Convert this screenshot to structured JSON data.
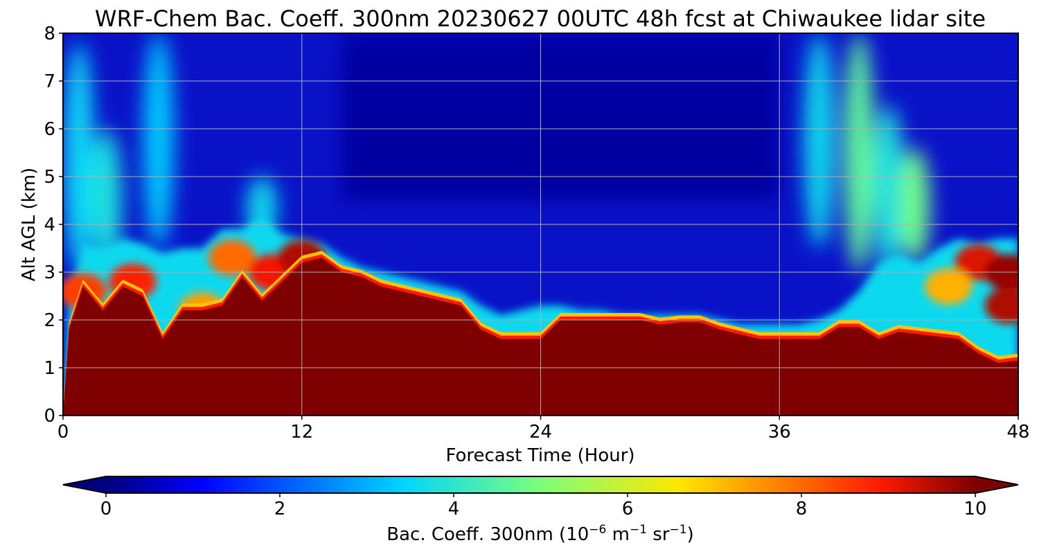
{
  "chart_data": {
    "type": "heatmap",
    "title": "WRF-Chem Bac. Coeff. 300nm  20230627 00UTC 48h fcst at Chiwaukee lidar site",
    "xlabel": "Forecast Time (Hour)",
    "ylabel": "Alt AGL (km)",
    "xlim": [
      0,
      48
    ],
    "ylim": [
      0,
      8
    ],
    "xticks": [
      0,
      12,
      24,
      36,
      48
    ],
    "yticks": [
      0,
      1,
      2,
      3,
      4,
      5,
      6,
      7,
      8
    ],
    "grid": true,
    "colormap": "jet",
    "colorbar": {
      "label_main": "Bac. Coeff. 300nm  (10",
      "label_exp1": "−6",
      "label_unit1": " m",
      "label_exp2": "−1",
      "label_unit2": " sr",
      "label_exp3": "−1",
      "label_close": ")",
      "range": [
        0,
        10
      ],
      "ticks": [
        0,
        2,
        4,
        6,
        8,
        10
      ],
      "extend": "both",
      "orientation": "horizontal",
      "placement": "bottom"
    },
    "saturated_layer_top_km": {
      "hours": [
        0,
        0.3,
        1,
        2,
        3,
        4,
        5,
        6,
        7,
        8,
        9,
        10,
        11,
        12,
        13,
        14,
        15,
        16,
        17,
        18,
        19,
        20,
        21,
        22,
        23,
        24,
        25,
        26,
        27,
        28,
        29,
        30,
        31,
        32,
        33,
        34,
        35,
        36,
        37,
        38,
        39,
        40,
        41,
        42,
        43,
        44,
        45,
        46,
        47,
        48
      ],
      "top": [
        0.0,
        1.8,
        2.7,
        2.2,
        2.7,
        2.5,
        1.6,
        2.2,
        2.2,
        2.3,
        2.9,
        2.4,
        2.8,
        3.2,
        3.3,
        3.0,
        2.9,
        2.7,
        2.6,
        2.5,
        2.4,
        2.3,
        1.8,
        1.6,
        1.6,
        1.6,
        2.0,
        2.0,
        2.0,
        2.0,
        2.0,
        1.9,
        1.95,
        1.95,
        1.8,
        1.7,
        1.6,
        1.6,
        1.6,
        1.6,
        1.85,
        1.85,
        1.6,
        1.75,
        1.7,
        1.65,
        1.6,
        1.3,
        1.1,
        1.15
      ]
    },
    "moderate_layer_top_km": {
      "hours": [
        0,
        0.3,
        1,
        2,
        3,
        4,
        5,
        6,
        7,
        8,
        9,
        10,
        11,
        12,
        13,
        14,
        15,
        16,
        17,
        18,
        19,
        20,
        21,
        22,
        23,
        24,
        25,
        26,
        27,
        28,
        29,
        30,
        31,
        32,
        33,
        34,
        35,
        36,
        37,
        38,
        39,
        40,
        41,
        42,
        43,
        44,
        45,
        46,
        47,
        48
      ],
      "top": [
        0.0,
        2.5,
        3.6,
        3.5,
        3.7,
        3.6,
        3.4,
        3.5,
        3.5,
        3.9,
        3.9,
        4.2,
        3.8,
        3.7,
        3.6,
        3.3,
        3.1,
        3.0,
        2.9,
        2.8,
        2.7,
        2.6,
        2.3,
        2.1,
        2.2,
        2.3,
        2.3,
        2.2,
        2.2,
        2.1,
        2.1,
        2.1,
        2.1,
        2.1,
        2.0,
        1.9,
        1.9,
        1.9,
        1.9,
        2.0,
        2.2,
        2.6,
        3.2,
        3.4,
        3.2,
        3.5,
        3.7,
        3.6,
        3.7,
        3.7
      ]
    },
    "plumes": [
      {
        "hour": 0.8,
        "base_km": 3.0,
        "top_km": 7.8,
        "level": 3.5
      },
      {
        "hour": 2.2,
        "base_km": 3.0,
        "top_km": 6.0,
        "level": 3.8
      },
      {
        "hour": 4.8,
        "base_km": 3.5,
        "top_km": 8.0,
        "level": 3.3
      },
      {
        "hour": 10.0,
        "base_km": 3.7,
        "top_km": 5.0,
        "level": 3.6
      },
      {
        "hour": 38.0,
        "base_km": 3.5,
        "top_km": 8.0,
        "level": 3.6
      },
      {
        "hour": 40.0,
        "base_km": 3.0,
        "top_km": 8.0,
        "level": 4.6
      },
      {
        "hour": 41.5,
        "base_km": 3.0,
        "top_km": 6.5,
        "level": 3.8
      },
      {
        "hour": 42.8,
        "base_km": 3.2,
        "top_km": 5.6,
        "level": 4.8
      }
    ],
    "hotspots": [
      {
        "hour": 1.0,
        "alt_km": 2.6,
        "level": 8.5
      },
      {
        "hour": 3.5,
        "alt_km": 2.8,
        "level": 8.8
      },
      {
        "hour": 8.5,
        "alt_km": 3.3,
        "level": 8.0
      },
      {
        "hour": 10.5,
        "alt_km": 3.0,
        "level": 9.0
      },
      {
        "hour": 12.0,
        "alt_km": 3.3,
        "level": 9.6
      },
      {
        "hour": 7.0,
        "alt_km": 2.2,
        "level": 7.4
      },
      {
        "hour": 46.0,
        "alt_km": 3.2,
        "level": 9.2
      },
      {
        "hour": 47.5,
        "alt_km": 3.0,
        "level": 9.8
      },
      {
        "hour": 47.5,
        "alt_km": 2.3,
        "level": 9.6
      },
      {
        "hour": 44.5,
        "alt_km": 2.7,
        "level": 7.2
      }
    ],
    "upper_minimum_level": 0.3
  }
}
